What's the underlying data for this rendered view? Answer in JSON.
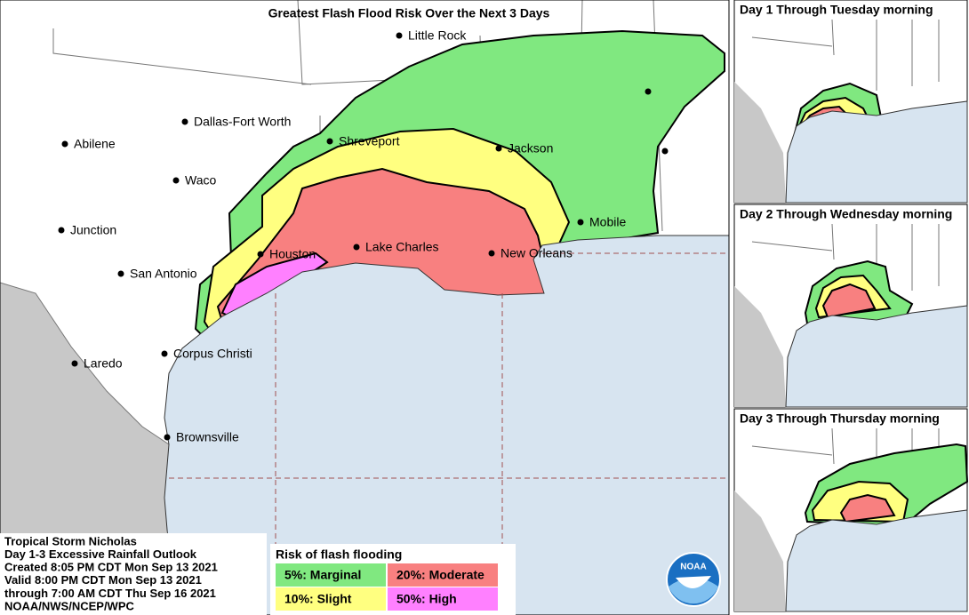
{
  "title": "Greatest Flash Flood Risk Over the Next 3 Days",
  "cities": [
    {
      "label": "Little Rock"
    },
    {
      "label": "Dallas-Fort Worth"
    },
    {
      "label": "Abilene"
    },
    {
      "label": "Shreveport"
    },
    {
      "label": "Jackson"
    },
    {
      "label": "Waco"
    },
    {
      "label": "Junction"
    },
    {
      "label": "Mobile"
    },
    {
      "label": "Lake Charles"
    },
    {
      "label": "Houston"
    },
    {
      "label": "New Orleans"
    },
    {
      "label": "San Antonio"
    },
    {
      "label": "Corpus Christi"
    },
    {
      "label": "Laredo"
    },
    {
      "label": "Brownsville"
    }
  ],
  "panels": [
    {
      "title": "Day 1 Through Tuesday morning"
    },
    {
      "title": "Day 2 Through Wednesday morning"
    },
    {
      "title": "Day 3 Through Thursday morning"
    }
  ],
  "info": [
    "Tropical Storm Nicholas",
    "Day 1-3 Excessive Rainfall Outlook",
    "Created 8:05 PM CDT Mon Sep 13 2021",
    "Valid 8:00 PM CDT Mon Sep 13 2021",
    "through 7:00 AM CDT Thu Sep 16 2021",
    "NOAA/NWS/NCEP/WPC"
  ],
  "legend": {
    "title": "Risk of flash flooding",
    "items": [
      {
        "label": "5%: Marginal",
        "color": "#80e880"
      },
      {
        "label": "10%: Slight",
        "color": "#ffff80"
      },
      {
        "label": "20%: Moderate",
        "color": "#f88080"
      },
      {
        "label": "50%: High",
        "color": "#ff80ff"
      }
    ]
  }
}
